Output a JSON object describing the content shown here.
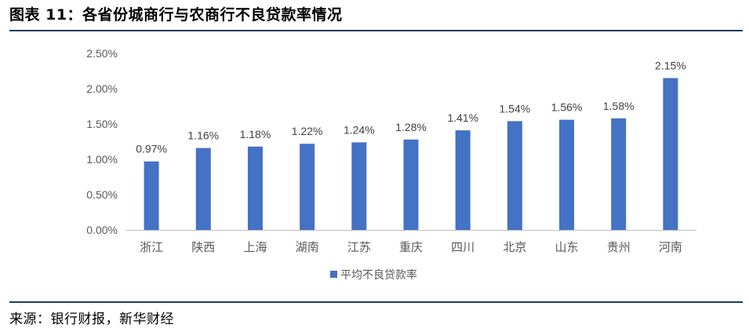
{
  "figure": {
    "title": "图表 11：各省份城商行与农商行不良贷款率情况",
    "source": "来源：银行财报，新华财经"
  },
  "colors": {
    "bar": "#4472c4",
    "axis": "#bfbfbf",
    "rule": "#1f3864"
  },
  "chart_data": {
    "type": "bar",
    "categories": [
      "浙江",
      "陕西",
      "上海",
      "湖南",
      "江苏",
      "重庆",
      "四川",
      "北京",
      "山东",
      "贵州",
      "河南"
    ],
    "series": [
      {
        "name": "平均不良贷款率",
        "values": [
          0.97,
          1.16,
          1.18,
          1.22,
          1.24,
          1.28,
          1.41,
          1.54,
          1.56,
          1.58,
          2.15
        ],
        "labels": [
          "0.97%",
          "1.16%",
          "1.18%",
          "1.22%",
          "1.24%",
          "1.28%",
          "1.41%",
          "1.54%",
          "1.56%",
          "1.58%",
          "2.15%"
        ]
      }
    ],
    "yticks": [
      "0.00%",
      "0.50%",
      "1.00%",
      "1.50%",
      "2.00%",
      "2.50%"
    ],
    "ytick_values": [
      0,
      0.5,
      1.0,
      1.5,
      2.0,
      2.5
    ],
    "ylim": [
      0,
      2.5
    ],
    "grid": false,
    "legend_position": "bottom"
  }
}
